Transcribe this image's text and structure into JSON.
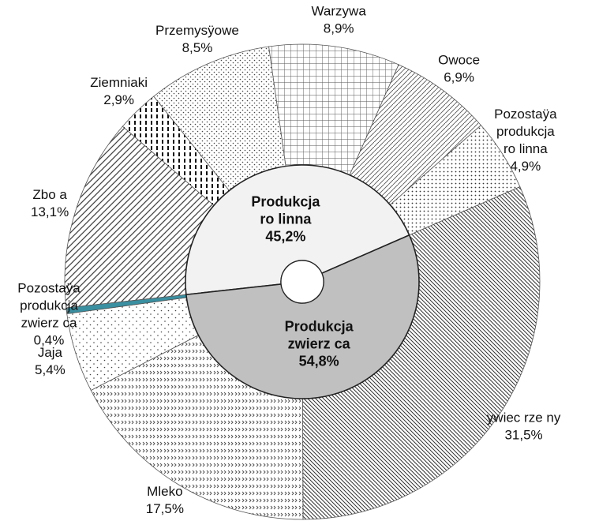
{
  "chart_data": {
    "type": "donut",
    "inner": {
      "categories": [
        "Produkcja\nro linna",
        "Produkcja\nzwierz ca"
      ],
      "values": [
        45.2,
        54.8
      ],
      "value_labels": [
        "45,2%",
        "54,8%"
      ]
    },
    "outer": {
      "categories": [
        "Zbo a",
        "Ziemniaki",
        "Przemysÿowe",
        "Warzywa",
        "Owoce",
        "Pozostaÿa\nprodukcja\nro linna",
        " ywiec rze ny",
        "Mleko",
        "Jaja",
        "Pozostaÿa\nprodukcja\nzwierz ca"
      ],
      "values": [
        13.1,
        2.9,
        8.5,
        8.9,
        6.9,
        4.9,
        31.5,
        17.5,
        5.4,
        0.4
      ],
      "value_labels": [
        "13,1%",
        "2,9%",
        "8,5%",
        "8,9%",
        "6,9%",
        "4,9%",
        "31,5%",
        "17,5%",
        "5,4%",
        "0,4%"
      ]
    }
  }
}
